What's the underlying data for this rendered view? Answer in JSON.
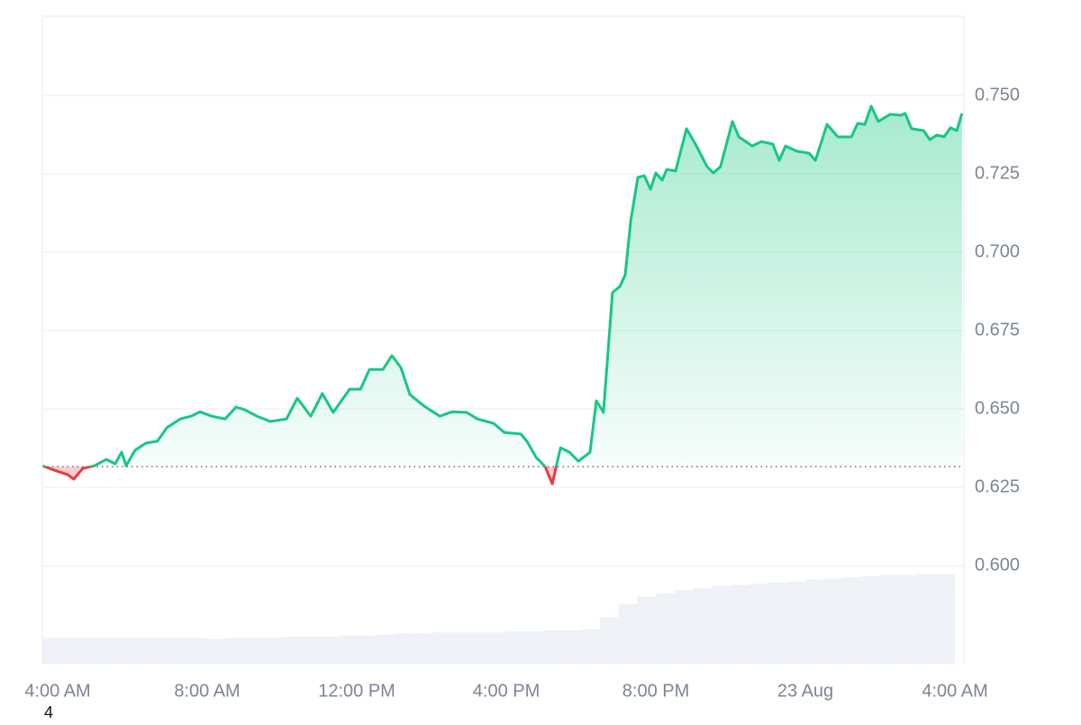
{
  "chart_data": {
    "type": "line",
    "x": [
      3.59,
      3.9,
      4.27,
      4.43,
      4.67,
      4.99,
      5.3,
      5.54,
      5.71,
      5.83,
      6.07,
      6.36,
      6.67,
      6.92,
      7.28,
      7.57,
      7.81,
      8.12,
      8.48,
      8.77,
      9.01,
      9.33,
      9.69,
      10.12,
      10.41,
      10.77,
      11.08,
      11.37,
      11.81,
      12.1,
      12.34,
      12.7,
      12.94,
      13.18,
      13.42,
      13.78,
      14.22,
      14.55,
      14.94,
      15.23,
      15.66,
      15.95,
      16.39,
      16.55,
      16.8,
      17.04,
      17.23,
      17.45,
      17.69,
      17.93,
      18.24,
      18.41,
      18.6,
      18.84,
      19.04,
      19.18,
      19.33,
      19.52,
      19.69,
      19.86,
      20.0,
      20.17,
      20.29,
      20.53,
      20.82,
      21.06,
      21.37,
      21.54,
      21.73,
      22.05,
      22.22,
      22.58,
      22.82,
      23.13,
      23.3,
      23.47,
      23.78,
      24.1,
      24.27,
      24.58,
      24.87,
      25.23,
      25.4,
      25.59,
      25.76,
      25.95,
      26.27,
      26.55,
      26.67,
      26.84,
      27.16,
      27.33,
      27.52,
      27.71,
      27.88,
      28.05,
      28.19
    ],
    "series": [
      {
        "color": "#16c784",
        "values": [
          0.6319,
          0.6305,
          0.629,
          0.6276,
          0.631,
          0.6319,
          0.6339,
          0.6325,
          0.6362,
          0.6319,
          0.6368,
          0.6391,
          0.6397,
          0.644,
          0.6468,
          0.6477,
          0.6491,
          0.6477,
          0.6468,
          0.6506,
          0.6497,
          0.6477,
          0.646,
          0.6468,
          0.6534,
          0.6477,
          0.6549,
          0.6489,
          0.6563,
          0.6563,
          0.6626,
          0.6626,
          0.667,
          0.6632,
          0.6546,
          0.6511,
          0.6477,
          0.6491,
          0.6489,
          0.6468,
          0.6454,
          0.6425,
          0.642,
          0.6397,
          0.6345,
          0.6316,
          0.6261,
          0.6376,
          0.6362,
          0.6333,
          0.6362,
          0.6526,
          0.6489,
          0.6871,
          0.6891,
          0.6928,
          0.7101,
          0.7239,
          0.7244,
          0.7201,
          0.7253,
          0.723,
          0.7264,
          0.7259,
          0.7394,
          0.7345,
          0.7273,
          0.7253,
          0.7273,
          0.7417,
          0.7368,
          0.7339,
          0.7353,
          0.7345,
          0.7293,
          0.7339,
          0.7322,
          0.7316,
          0.7293,
          0.7408,
          0.7368,
          0.7368,
          0.7411,
          0.7408,
          0.7466,
          0.7417,
          0.744,
          0.7437,
          0.7443,
          0.7394,
          0.7388,
          0.7359,
          0.7374,
          0.7368,
          0.7397,
          0.7388,
          0.7443
        ]
      }
    ],
    "below_color": "#ea3943",
    "baseline": 0.6316,
    "volume": {
      "color": "#eef1f5",
      "x": [
        3.75,
        4.25,
        4.75,
        5.25,
        5.75,
        6.25,
        6.75,
        7.25,
        7.75,
        8.25,
        8.75,
        9.25,
        9.75,
        10.25,
        10.75,
        11.25,
        11.75,
        12.25,
        12.75,
        13.25,
        13.75,
        14.25,
        14.75,
        15.25,
        15.75,
        16.25,
        16.75,
        17.25,
        17.75,
        18.25,
        18.75,
        19.25,
        19.75,
        20.25,
        20.75,
        21.25,
        21.75,
        22.25,
        22.75,
        23.25,
        23.75,
        24.25,
        24.75,
        25.25,
        25.75,
        26.25,
        26.75,
        27.25,
        27.75
      ],
      "values": [
        24,
        24,
        24,
        24,
        24,
        24,
        24,
        24,
        24,
        23,
        24,
        24,
        24,
        25,
        25,
        25,
        26,
        26,
        27,
        28,
        28,
        29,
        29,
        29,
        29,
        30,
        30,
        31,
        31,
        32,
        43,
        55,
        62,
        65,
        68,
        70,
        72,
        73,
        74,
        75,
        76,
        78,
        79,
        80,
        81,
        82,
        82,
        83,
        83
      ],
      "ylim": [
        0,
        100
      ]
    },
    "xlim": [
      3.59,
      28.24
    ],
    "ylim": [
      0.5687,
      0.7753
    ],
    "xticks": [
      {
        "value": 4,
        "label": "4:00 AM"
      },
      {
        "value": 8,
        "label": "8:00 AM"
      },
      {
        "value": 12,
        "label": "12:00 PM"
      },
      {
        "value": 16,
        "label": "4:00 PM"
      },
      {
        "value": 20,
        "label": "8:00 PM"
      },
      {
        "value": 24,
        "label": "23 Aug"
      },
      {
        "value": 28,
        "label": "4:00 AM"
      }
    ],
    "yticks": [
      {
        "value": 0.6,
        "label": "0.600"
      },
      {
        "value": 0.625,
        "label": "0.625"
      },
      {
        "value": 0.65,
        "label": "0.650"
      },
      {
        "value": 0.675,
        "label": "0.675"
      },
      {
        "value": 0.7,
        "label": "0.700"
      },
      {
        "value": 0.725,
        "label": "0.725"
      },
      {
        "value": 0.75,
        "label": "0.750"
      }
    ],
    "grid": true,
    "annotation": "4"
  }
}
